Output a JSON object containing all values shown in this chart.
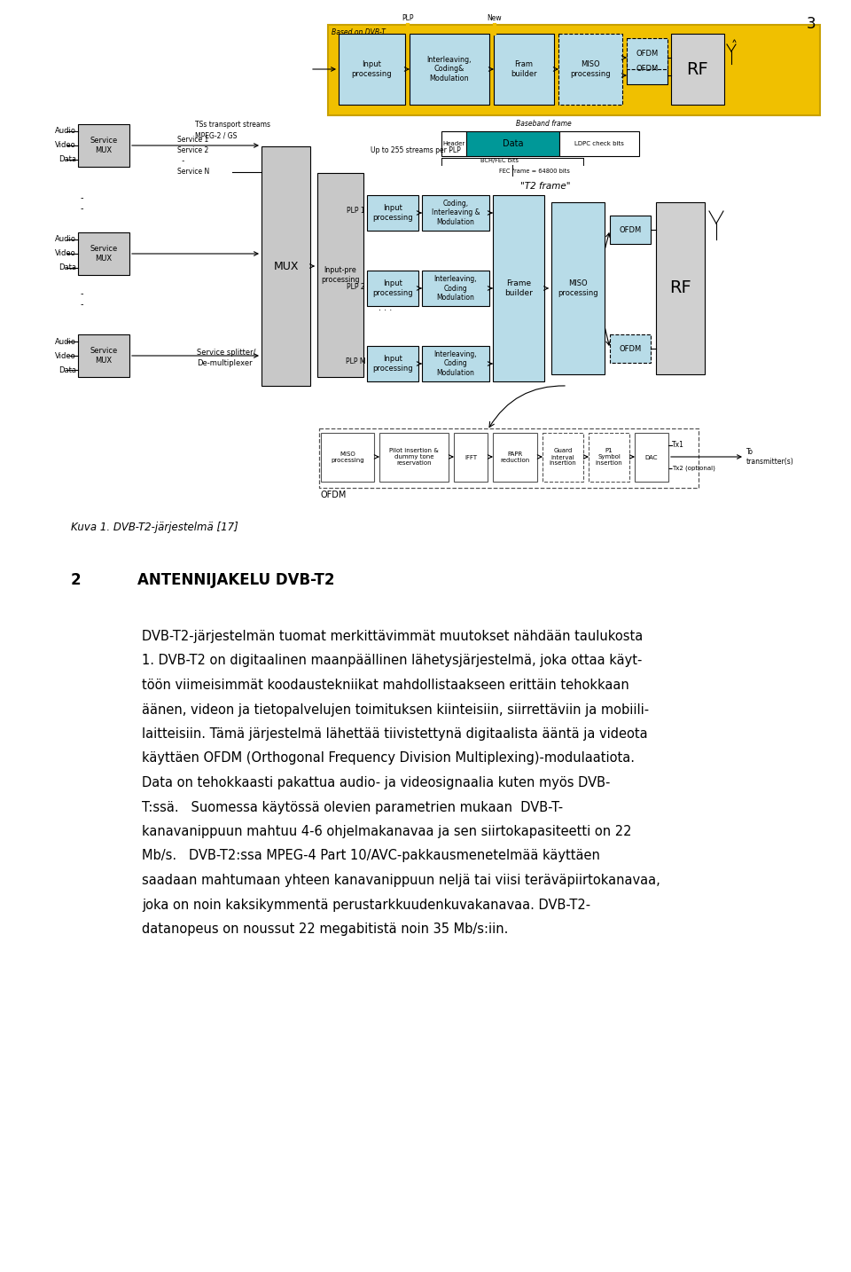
{
  "page_number": "3",
  "caption": "Kuva 1. DVB-T2-järjestelmä [17]",
  "section_number": "2",
  "section_title": "ANTENNIJAKELU DVB-T2",
  "bg_color": "#ffffff",
  "text_color": "#000000",
  "body_lines": [
    "DVB-T2-järjestelmän tuomat merkittävimmät muutokset nähdään taulukosta",
    "1. DVB-T2 on digitaalinen maanpäällinen lähetysjärjestelmä, joka ottaa käyt-",
    "töön viimeisimmät koodaustekniikat mahdollistaakseen erittäin tehokkaan",
    "äänen, videon ja tietopalvelujen toimituksen kiinteisiin, siirrettäviin ja mobiili-",
    "laitteisiin. Tämä järjestelmä lähettää tiivistettynä digitaalista ääntä ja videota",
    "käyttäen OFDM (Orthogonal Frequency Division Multiplexing)-modulaatiota.",
    "Data on tehokkaasti pakattua audio- ja videosignaalia kuten myös DVB-",
    "T:ssä.   Suomessa käytössä olevien parametrien mukaan  DVB-T-",
    "kanavanippuun mahtuu 4-6 ohjelmakanavaa ja sen siirtokapasiteetti on 22",
    "Mb/s.   DVB-T2:ssa MPEG-4 Part 10/AVC-pakkausmenetelmää käyttäen",
    "saadaan mahtumaan yhteen kanavanippuun neljä tai viisi teräväpiirtokanavaa,",
    "joka on noin kaksikymmentä perustarkkuudenkuvakanavaa. DVB-T2-",
    "datanopeus on noussut 22 megabitistä noin 35 Mb/s:iin."
  ]
}
